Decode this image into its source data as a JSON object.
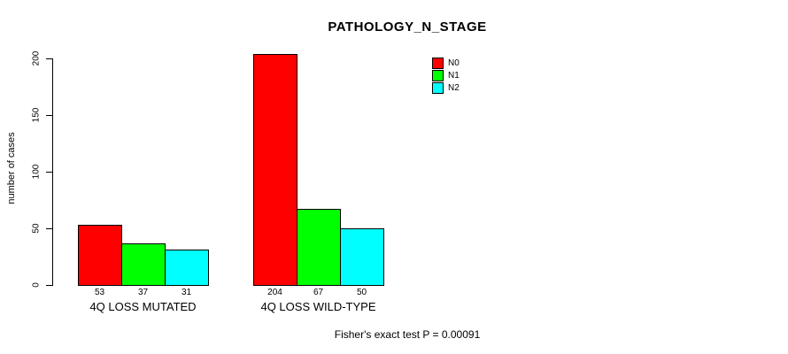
{
  "chart_data": {
    "type": "bar",
    "title": "PATHOLOGY_N_STAGE",
    "ylabel": "number of cases",
    "xlabel": "",
    "ylim": [
      0,
      200
    ],
    "yticks": [
      0,
      50,
      100,
      150,
      200
    ],
    "categories": [
      "4Q LOSS MUTATED",
      "4Q LOSS WILD-TYPE"
    ],
    "series": [
      {
        "name": "N0",
        "color": "#ff0000",
        "values": [
          53,
          204
        ]
      },
      {
        "name": "N1",
        "color": "#00ff00",
        "values": [
          37,
          67
        ]
      },
      {
        "name": "N2",
        "color": "#00ffff",
        "values": [
          31,
          50
        ]
      }
    ],
    "bar_value_labels": [
      [
        "53",
        "37",
        "31"
      ],
      [
        "204",
        "67",
        "50"
      ]
    ],
    "legend": {
      "position": "top-right",
      "entries": [
        {
          "label": "N0",
          "color": "#ff0000"
        },
        {
          "label": "N1",
          "color": "#00ff00"
        },
        {
          "label": "N2",
          "color": "#00ffff"
        }
      ]
    },
    "grid": false,
    "annotation": "Fisher's exact test P = 0.00091"
  }
}
